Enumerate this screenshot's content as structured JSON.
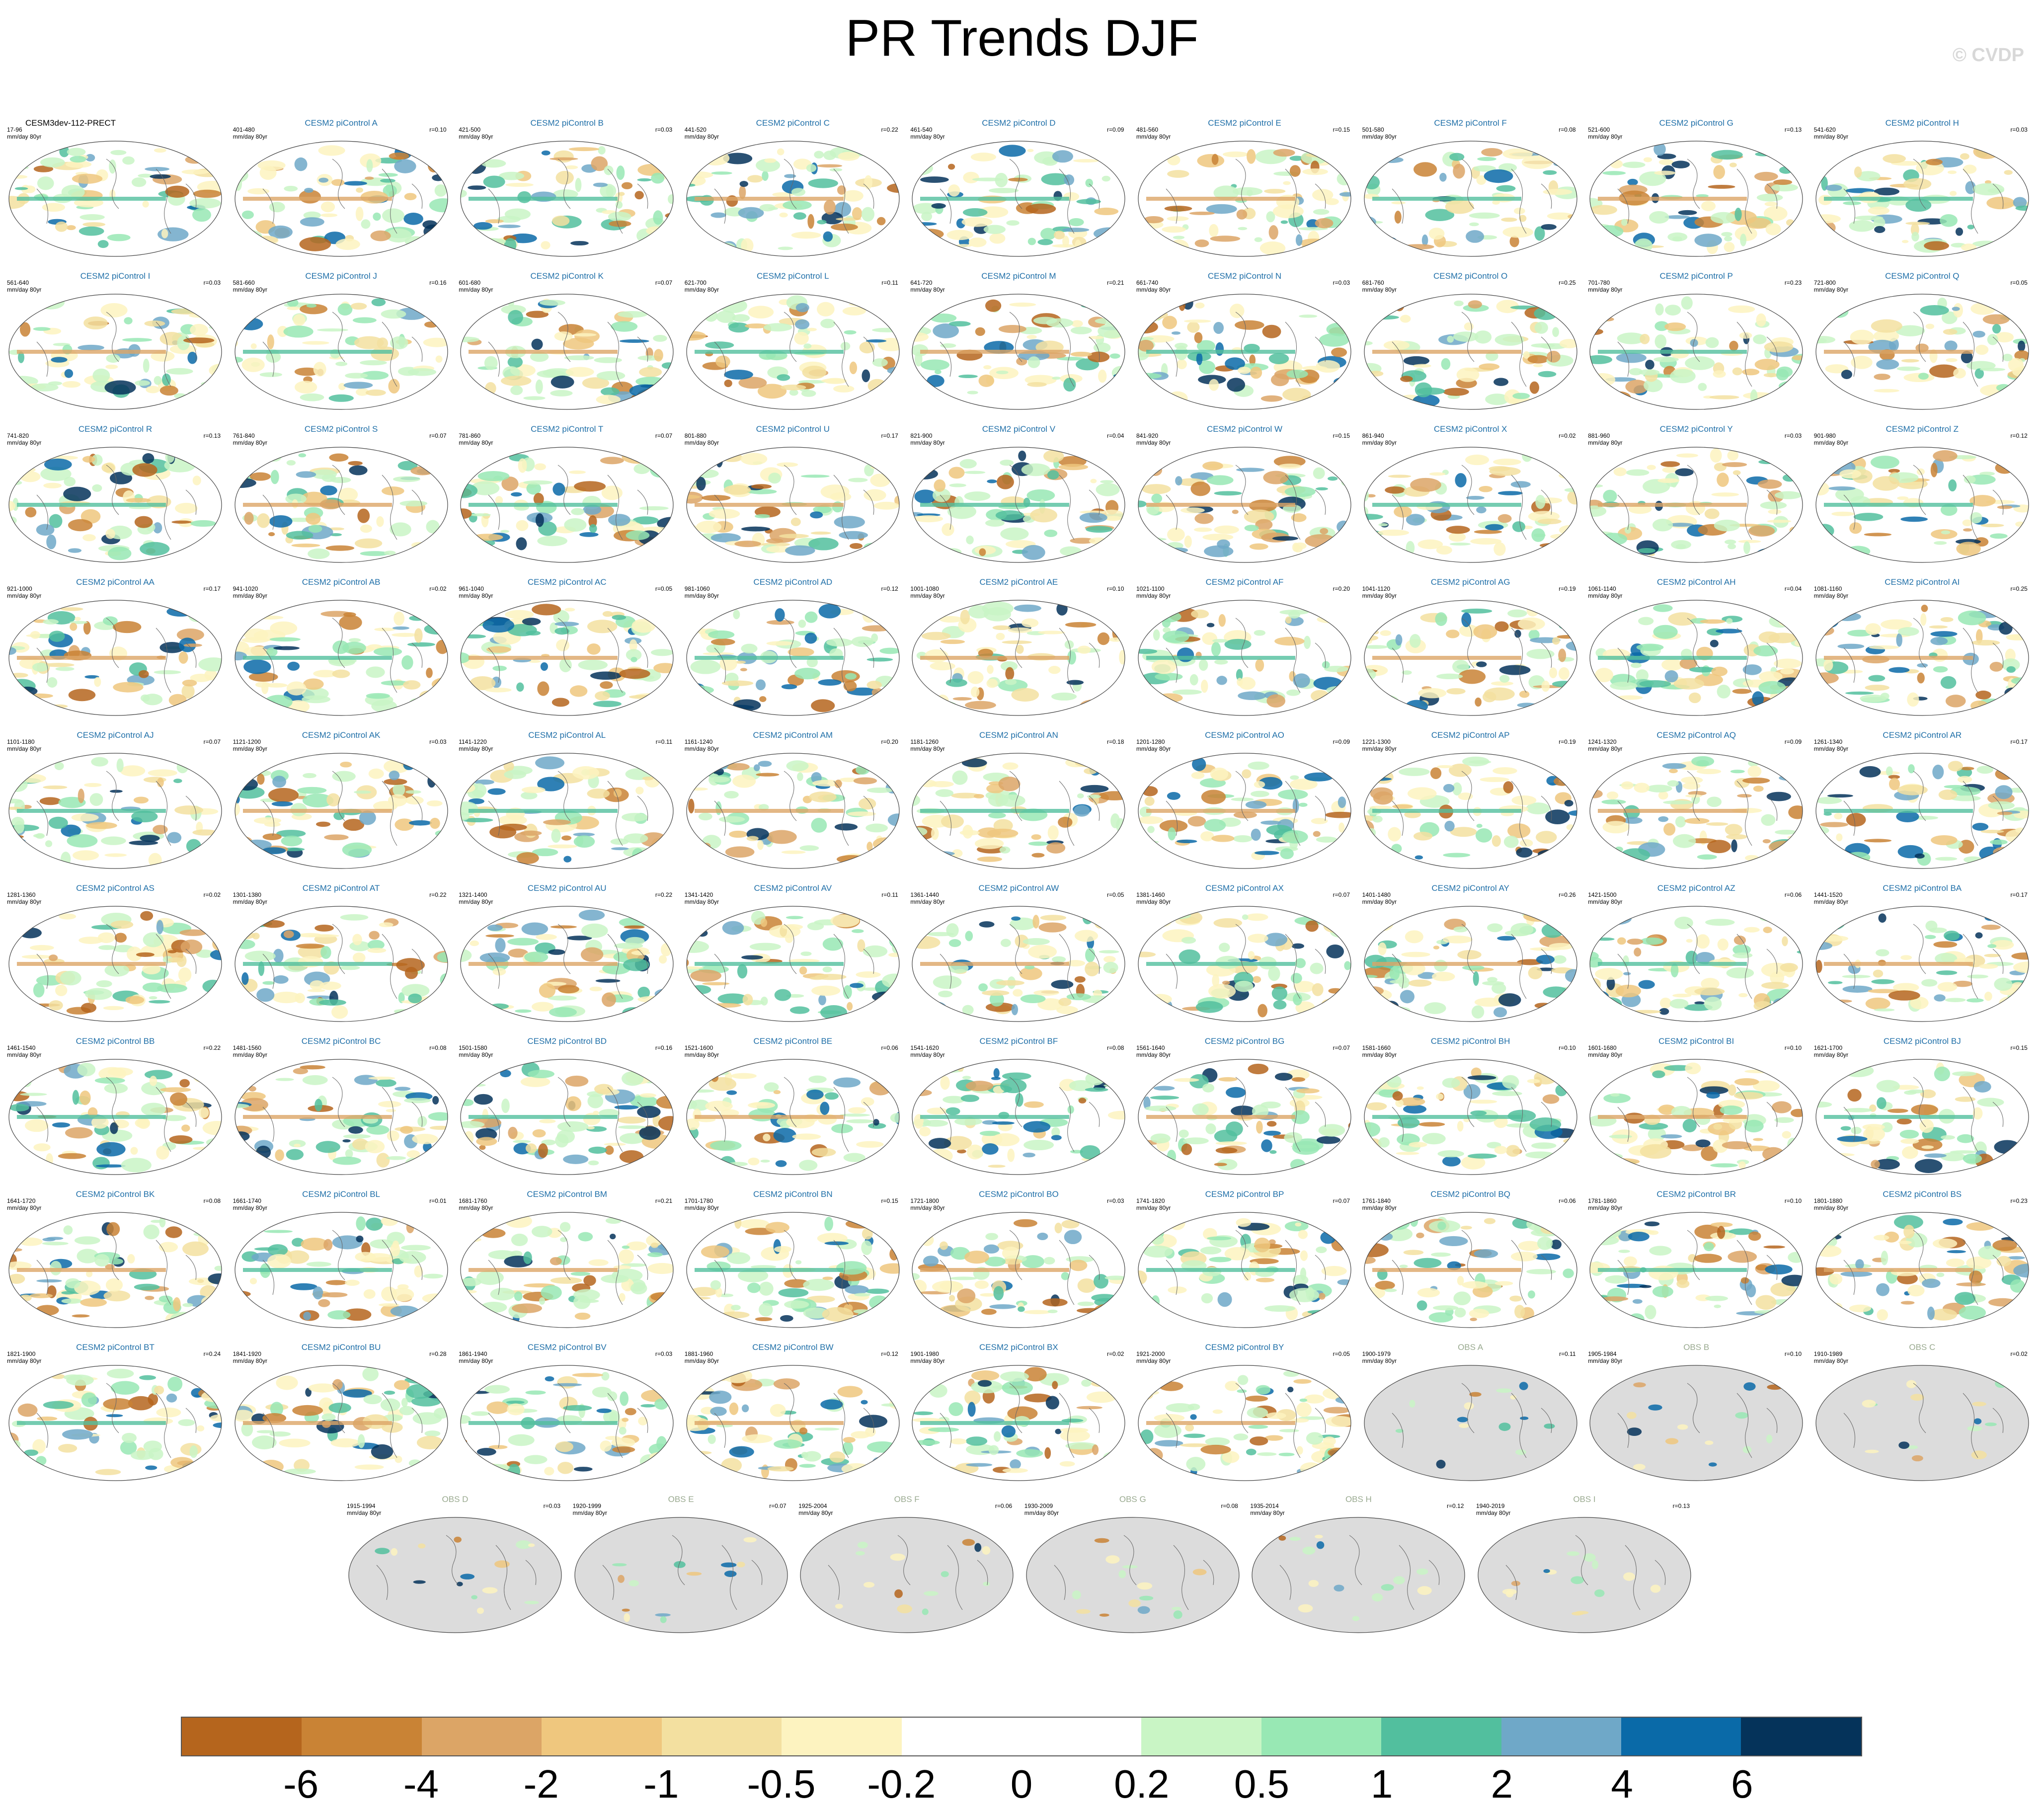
{
  "title": "PR Trends DJF",
  "watermark": "© CVDP",
  "units": "mm/day 80yr",
  "colors": {
    "model_title": "#1f6fa8",
    "obs_title": "#9aaa90",
    "main_title": "#000000",
    "land_obs": "#dcdcdc",
    "ocean": "#ffffff"
  },
  "panels": [
    {
      "label": "CESM3dev-112-PRECT",
      "years": "17-96",
      "r": "",
      "type": "main"
    },
    {
      "label": "CESM2 piControl A",
      "years": "401-480",
      "r": "r=0.10",
      "type": "model"
    },
    {
      "label": "CESM2 piControl B",
      "years": "421-500",
      "r": "r=0.03",
      "type": "model"
    },
    {
      "label": "CESM2 piControl C",
      "years": "441-520",
      "r": "r=0.22",
      "type": "model"
    },
    {
      "label": "CESM2 piControl D",
      "years": "461-540",
      "r": "r=0.09",
      "type": "model"
    },
    {
      "label": "CESM2 piControl E",
      "years": "481-560",
      "r": "r=0.15",
      "type": "model"
    },
    {
      "label": "CESM2 piControl F",
      "years": "501-580",
      "r": "r=0.08",
      "type": "model"
    },
    {
      "label": "CESM2 piControl G",
      "years": "521-600",
      "r": "r=0.13",
      "type": "model"
    },
    {
      "label": "CESM2 piControl H",
      "years": "541-620",
      "r": "r=0.03",
      "type": "model"
    },
    {
      "label": "CESM2 piControl I",
      "years": "561-640",
      "r": "r=0.03",
      "type": "model"
    },
    {
      "label": "CESM2 piControl J",
      "years": "581-660",
      "r": "r=0.16",
      "type": "model"
    },
    {
      "label": "CESM2 piControl K",
      "years": "601-680",
      "r": "r=0.07",
      "type": "model"
    },
    {
      "label": "CESM2 piControl L",
      "years": "621-700",
      "r": "r=0.11",
      "type": "model"
    },
    {
      "label": "CESM2 piControl M",
      "years": "641-720",
      "r": "r=0.21",
      "type": "model"
    },
    {
      "label": "CESM2 piControl N",
      "years": "661-740",
      "r": "r=0.03",
      "type": "model"
    },
    {
      "label": "CESM2 piControl O",
      "years": "681-760",
      "r": "r=0.25",
      "type": "model"
    },
    {
      "label": "CESM2 piControl P",
      "years": "701-780",
      "r": "r=0.23",
      "type": "model"
    },
    {
      "label": "CESM2 piControl Q",
      "years": "721-800",
      "r": "r=0.05",
      "type": "model"
    },
    {
      "label": "CESM2 piControl R",
      "years": "741-820",
      "r": "r=0.13",
      "type": "model"
    },
    {
      "label": "CESM2 piControl S",
      "years": "761-840",
      "r": "r=0.07",
      "type": "model"
    },
    {
      "label": "CESM2 piControl T",
      "years": "781-860",
      "r": "r=0.07",
      "type": "model"
    },
    {
      "label": "CESM2 piControl U",
      "years": "801-880",
      "r": "r=0.17",
      "type": "model"
    },
    {
      "label": "CESM2 piControl V",
      "years": "821-900",
      "r": "r=0.04",
      "type": "model"
    },
    {
      "label": "CESM2 piControl W",
      "years": "841-920",
      "r": "r=0.15",
      "type": "model"
    },
    {
      "label": "CESM2 piControl X",
      "years": "861-940",
      "r": "r=0.02",
      "type": "model"
    },
    {
      "label": "CESM2 piControl Y",
      "years": "881-960",
      "r": "r=0.03",
      "type": "model"
    },
    {
      "label": "CESM2 piControl Z",
      "years": "901-980",
      "r": "r=0.12",
      "type": "model"
    },
    {
      "label": "CESM2 piControl AA",
      "years": "921-1000",
      "r": "r=0.17",
      "type": "model"
    },
    {
      "label": "CESM2 piControl AB",
      "years": "941-1020",
      "r": "r=0.02",
      "type": "model"
    },
    {
      "label": "CESM2 piControl AC",
      "years": "961-1040",
      "r": "r=0.05",
      "type": "model"
    },
    {
      "label": "CESM2 piControl AD",
      "years": "981-1060",
      "r": "r=0.12",
      "type": "model"
    },
    {
      "label": "CESM2 piControl AE",
      "years": "1001-1080",
      "r": "r=0.10",
      "type": "model"
    },
    {
      "label": "CESM2 piControl AF",
      "years": "1021-1100",
      "r": "r=0.20",
      "type": "model"
    },
    {
      "label": "CESM2 piControl AG",
      "years": "1041-1120",
      "r": "r=0.19",
      "type": "model"
    },
    {
      "label": "CESM2 piControl AH",
      "years": "1061-1140",
      "r": "r=0.04",
      "type": "model"
    },
    {
      "label": "CESM2 piControl AI",
      "years": "1081-1160",
      "r": "r=0.25",
      "type": "model"
    },
    {
      "label": "CESM2 piControl AJ",
      "years": "1101-1180",
      "r": "r=0.07",
      "type": "model"
    },
    {
      "label": "CESM2 piControl AK",
      "years": "1121-1200",
      "r": "r=0.03",
      "type": "model"
    },
    {
      "label": "CESM2 piControl AL",
      "years": "1141-1220",
      "r": "r=0.11",
      "type": "model"
    },
    {
      "label": "CESM2 piControl AM",
      "years": "1161-1240",
      "r": "r=0.20",
      "type": "model"
    },
    {
      "label": "CESM2 piControl AN",
      "years": "1181-1260",
      "r": "r=0.18",
      "type": "model"
    },
    {
      "label": "CESM2 piControl AO",
      "years": "1201-1280",
      "r": "r=0.09",
      "type": "model"
    },
    {
      "label": "CESM2 piControl AP",
      "years": "1221-1300",
      "r": "r=0.19",
      "type": "model"
    },
    {
      "label": "CESM2 piControl AQ",
      "years": "1241-1320",
      "r": "r=0.09",
      "type": "model"
    },
    {
      "label": "CESM2 piControl AR",
      "years": "1261-1340",
      "r": "r=0.17",
      "type": "model"
    },
    {
      "label": "CESM2 piControl AS",
      "years": "1281-1360",
      "r": "r=0.02",
      "type": "model"
    },
    {
      "label": "CESM2 piControl AT",
      "years": "1301-1380",
      "r": "r=0.22",
      "type": "model"
    },
    {
      "label": "CESM2 piControl AU",
      "years": "1321-1400",
      "r": "r=0.22",
      "type": "model"
    },
    {
      "label": "CESM2 piControl AV",
      "years": "1341-1420",
      "r": "r=0.11",
      "type": "model"
    },
    {
      "label": "CESM2 piControl AW",
      "years": "1361-1440",
      "r": "r=0.05",
      "type": "model"
    },
    {
      "label": "CESM2 piControl AX",
      "years": "1381-1460",
      "r": "r=0.07",
      "type": "model"
    },
    {
      "label": "CESM2 piControl AY",
      "years": "1401-1480",
      "r": "r=0.26",
      "type": "model"
    },
    {
      "label": "CESM2 piControl AZ",
      "years": "1421-1500",
      "r": "r=0.06",
      "type": "model"
    },
    {
      "label": "CESM2 piControl BA",
      "years": "1441-1520",
      "r": "r=0.17",
      "type": "model"
    },
    {
      "label": "CESM2 piControl BB",
      "years": "1461-1540",
      "r": "r=0.22",
      "type": "model"
    },
    {
      "label": "CESM2 piControl BC",
      "years": "1481-1560",
      "r": "r=0.08",
      "type": "model"
    },
    {
      "label": "CESM2 piControl BD",
      "years": "1501-1580",
      "r": "r=0.16",
      "type": "model"
    },
    {
      "label": "CESM2 piControl BE",
      "years": "1521-1600",
      "r": "r=0.06",
      "type": "model"
    },
    {
      "label": "CESM2 piControl BF",
      "years": "1541-1620",
      "r": "r=0.08",
      "type": "model"
    },
    {
      "label": "CESM2 piControl BG",
      "years": "1561-1640",
      "r": "r=0.07",
      "type": "model"
    },
    {
      "label": "CESM2 piControl BH",
      "years": "1581-1660",
      "r": "r=0.10",
      "type": "model"
    },
    {
      "label": "CESM2 piControl BI",
      "years": "1601-1680",
      "r": "r=0.10",
      "type": "model"
    },
    {
      "label": "CESM2 piControl BJ",
      "years": "1621-1700",
      "r": "r=0.15",
      "type": "model"
    },
    {
      "label": "CESM2 piControl BK",
      "years": "1641-1720",
      "r": "r=0.08",
      "type": "model"
    },
    {
      "label": "CESM2 piControl BL",
      "years": "1661-1740",
      "r": "r=0.01",
      "type": "model"
    },
    {
      "label": "CESM2 piControl BM",
      "years": "1681-1760",
      "r": "r=0.21",
      "type": "model"
    },
    {
      "label": "CESM2 piControl BN",
      "years": "1701-1780",
      "r": "r=0.15",
      "type": "model"
    },
    {
      "label": "CESM2 piControl BO",
      "years": "1721-1800",
      "r": "r=0.03",
      "type": "model"
    },
    {
      "label": "CESM2 piControl BP",
      "years": "1741-1820",
      "r": "r=0.07",
      "type": "model"
    },
    {
      "label": "CESM2 piControl BQ",
      "years": "1761-1840",
      "r": "r=0.06",
      "type": "model"
    },
    {
      "label": "CESM2 piControl BR",
      "years": "1781-1860",
      "r": "r=0.10",
      "type": "model"
    },
    {
      "label": "CESM2 piControl BS",
      "years": "1801-1880",
      "r": "r=0.23",
      "type": "model"
    },
    {
      "label": "CESM2 piControl BT",
      "years": "1821-1900",
      "r": "r=0.24",
      "type": "model"
    },
    {
      "label": "CESM2 piControl BU",
      "years": "1841-1920",
      "r": "r=0.28",
      "type": "model"
    },
    {
      "label": "CESM2 piControl BV",
      "years": "1861-1940",
      "r": "r=0.03",
      "type": "model"
    },
    {
      "label": "CESM2 piControl BW",
      "years": "1881-1960",
      "r": "r=0.12",
      "type": "model"
    },
    {
      "label": "CESM2 piControl BX",
      "years": "1901-1980",
      "r": "r=0.02",
      "type": "model"
    },
    {
      "label": "CESM2 piControl BY",
      "years": "1921-2000",
      "r": "r=0.05",
      "type": "model"
    },
    {
      "label": "OBS A",
      "years": "1900-1979",
      "r": "r=0.11",
      "type": "obs"
    },
    {
      "label": "OBS B",
      "years": "1905-1984",
      "r": "r=0.10",
      "type": "obs"
    },
    {
      "label": "OBS C",
      "years": "1910-1989",
      "r": "r=0.02",
      "type": "obs"
    },
    {
      "label": "OBS D",
      "years": "1915-1994",
      "r": "r=0.03",
      "type": "obs"
    },
    {
      "label": "OBS E",
      "years": "1920-1999",
      "r": "r=0.07",
      "type": "obs"
    },
    {
      "label": "OBS F",
      "years": "1925-2004",
      "r": "r=0.06",
      "type": "obs"
    },
    {
      "label": "OBS G",
      "years": "1930-2009",
      "r": "r=0.08",
      "type": "obs"
    },
    {
      "label": "OBS H",
      "years": "1935-2014",
      "r": "r=0.12",
      "type": "obs"
    },
    {
      "label": "OBS I",
      "years": "1940-2019",
      "r": "r=0.13",
      "type": "obs"
    }
  ],
  "colorbar": {
    "colors": [
      "#b5651d",
      "#c98335",
      "#dca566",
      "#efc77e",
      "#f3e0a0",
      "#fdf3c0",
      "#ffffff",
      "#ffffff",
      "#c9f5c5",
      "#98e8b4",
      "#52bf9e",
      "#6fa8c8",
      "#0a6aa8",
      "#05335a"
    ],
    "labels": [
      "-6",
      "-4",
      "-2",
      "-1",
      "-0.5",
      "-0.2",
      "0",
      "0.2",
      "0.5",
      "1",
      "2",
      "4",
      "6"
    ]
  }
}
